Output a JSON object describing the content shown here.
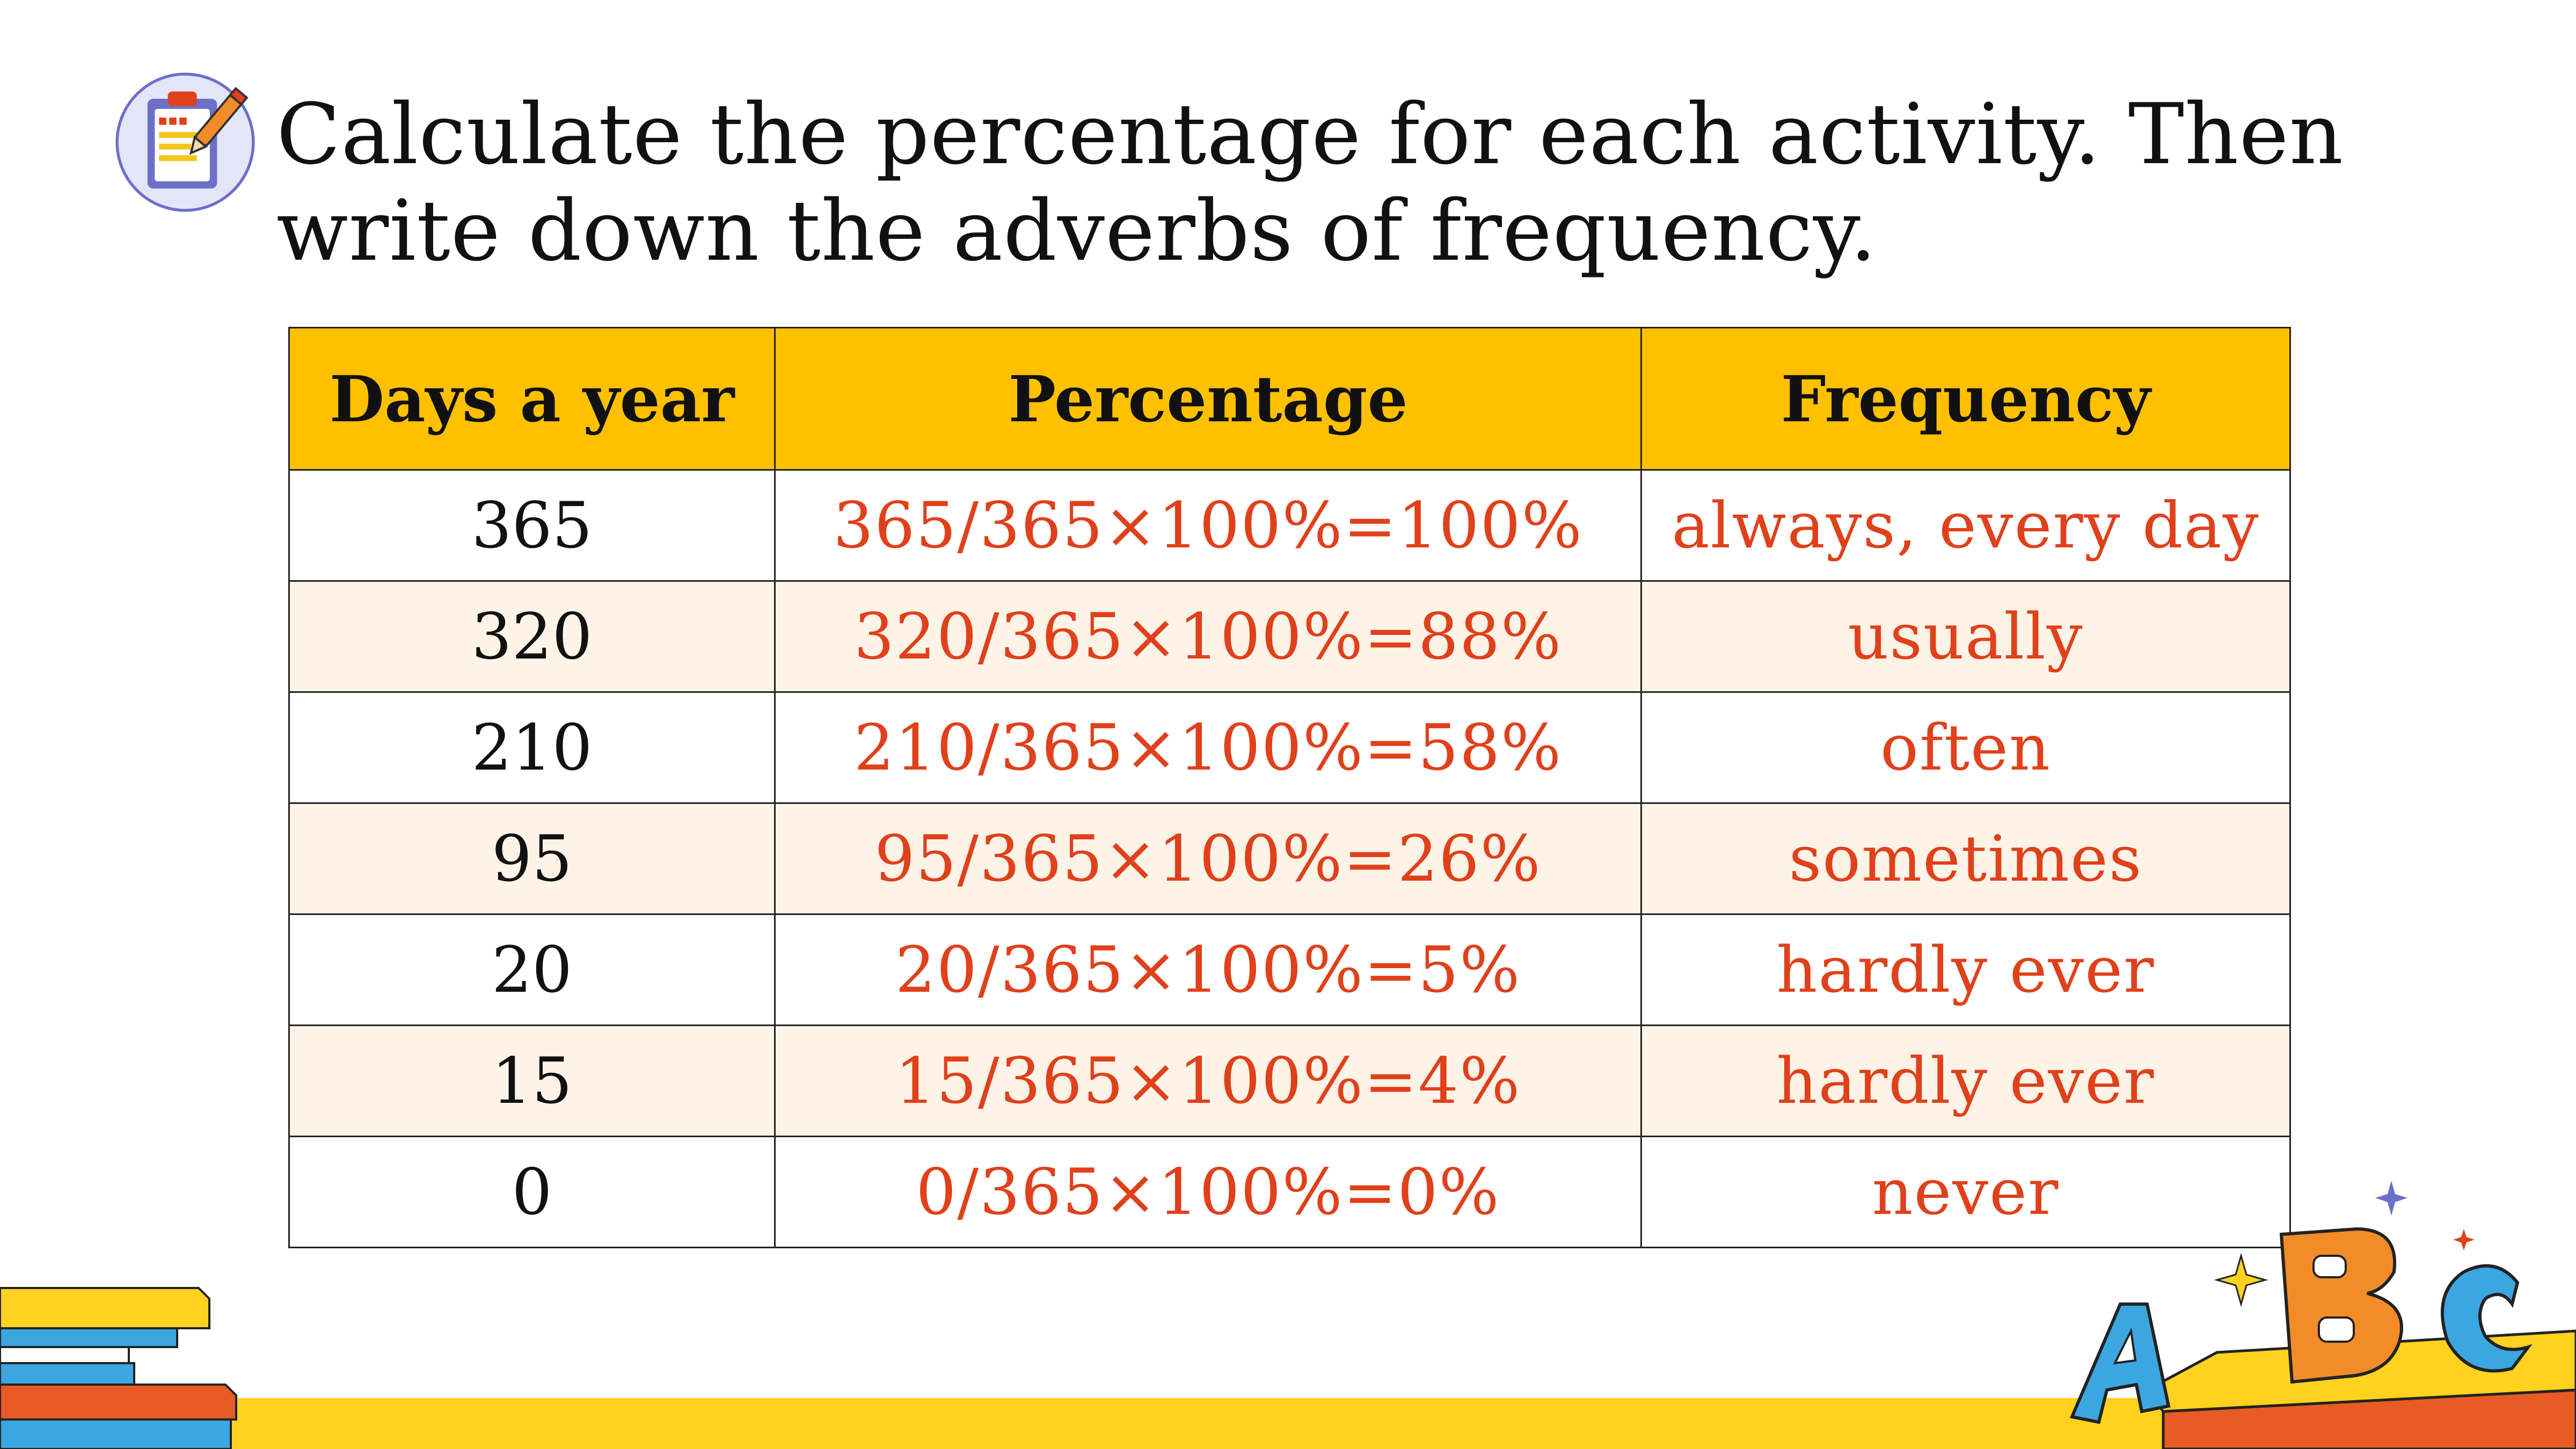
{
  "title": "Calculate the percentage for each activity. Then write down the adverbs of frequency.",
  "icons": {
    "title_icon": "clipboard-pencil-icon",
    "decor_left": "books-stack-icon",
    "decor_right": "abc-blocks-icon"
  },
  "colors": {
    "header_bg": "#FFC000",
    "answer_text": "#E0401A",
    "alt_row_bg": "#FDF3E7",
    "bottom_band": "#FFD21F"
  },
  "table": {
    "headers": [
      "Days a year",
      "Percentage",
      "Frequency"
    ],
    "rows": [
      {
        "days": "365",
        "percentage": "365/365×100%=100%",
        "frequency": "always, every day"
      },
      {
        "days": "320",
        "percentage": "320/365×100%=88%",
        "frequency": "usually"
      },
      {
        "days": "210",
        "percentage": "210/365×100%=58%",
        "frequency": "often"
      },
      {
        "days": "95",
        "percentage": "95/365×100%=26%",
        "frequency": "sometimes"
      },
      {
        "days": "20",
        "percentage": "20/365×100%=5%",
        "frequency": "hardly ever"
      },
      {
        "days": "15",
        "percentage": "15/365×100%=4%",
        "frequency": "hardly ever"
      },
      {
        "days": "0",
        "percentage": "0/365×100%=0%",
        "frequency": "never"
      }
    ]
  }
}
